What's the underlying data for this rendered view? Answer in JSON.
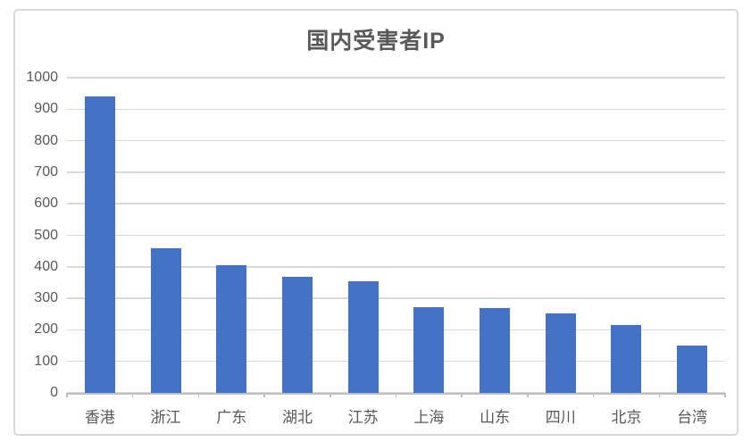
{
  "chart_data": {
    "type": "bar",
    "title": "国内受害者IP",
    "categories": [
      "香港",
      "浙江",
      "广东",
      "湖北",
      "江苏",
      "上海",
      "山东",
      "四川",
      "北京",
      "台湾"
    ],
    "values": [
      940,
      460,
      405,
      368,
      355,
      272,
      269,
      252,
      215,
      151
    ],
    "ylim": [
      0,
      1000
    ],
    "y_tick_interval": 100,
    "y_tick_labels": [
      "1000",
      "900",
      "800",
      "700",
      "600",
      "500",
      "400",
      "300",
      "200",
      "100",
      "0"
    ],
    "xlabel": "",
    "ylabel": "",
    "legend": "none",
    "grid": "horizontal",
    "colors": {
      "bar": "#4472C4",
      "gridline": "#D9D9D9",
      "axis_line": "#BFBFBF",
      "text": "#595959",
      "frame_border": "#D9D9D9",
      "background": "#FFFFFF"
    }
  }
}
